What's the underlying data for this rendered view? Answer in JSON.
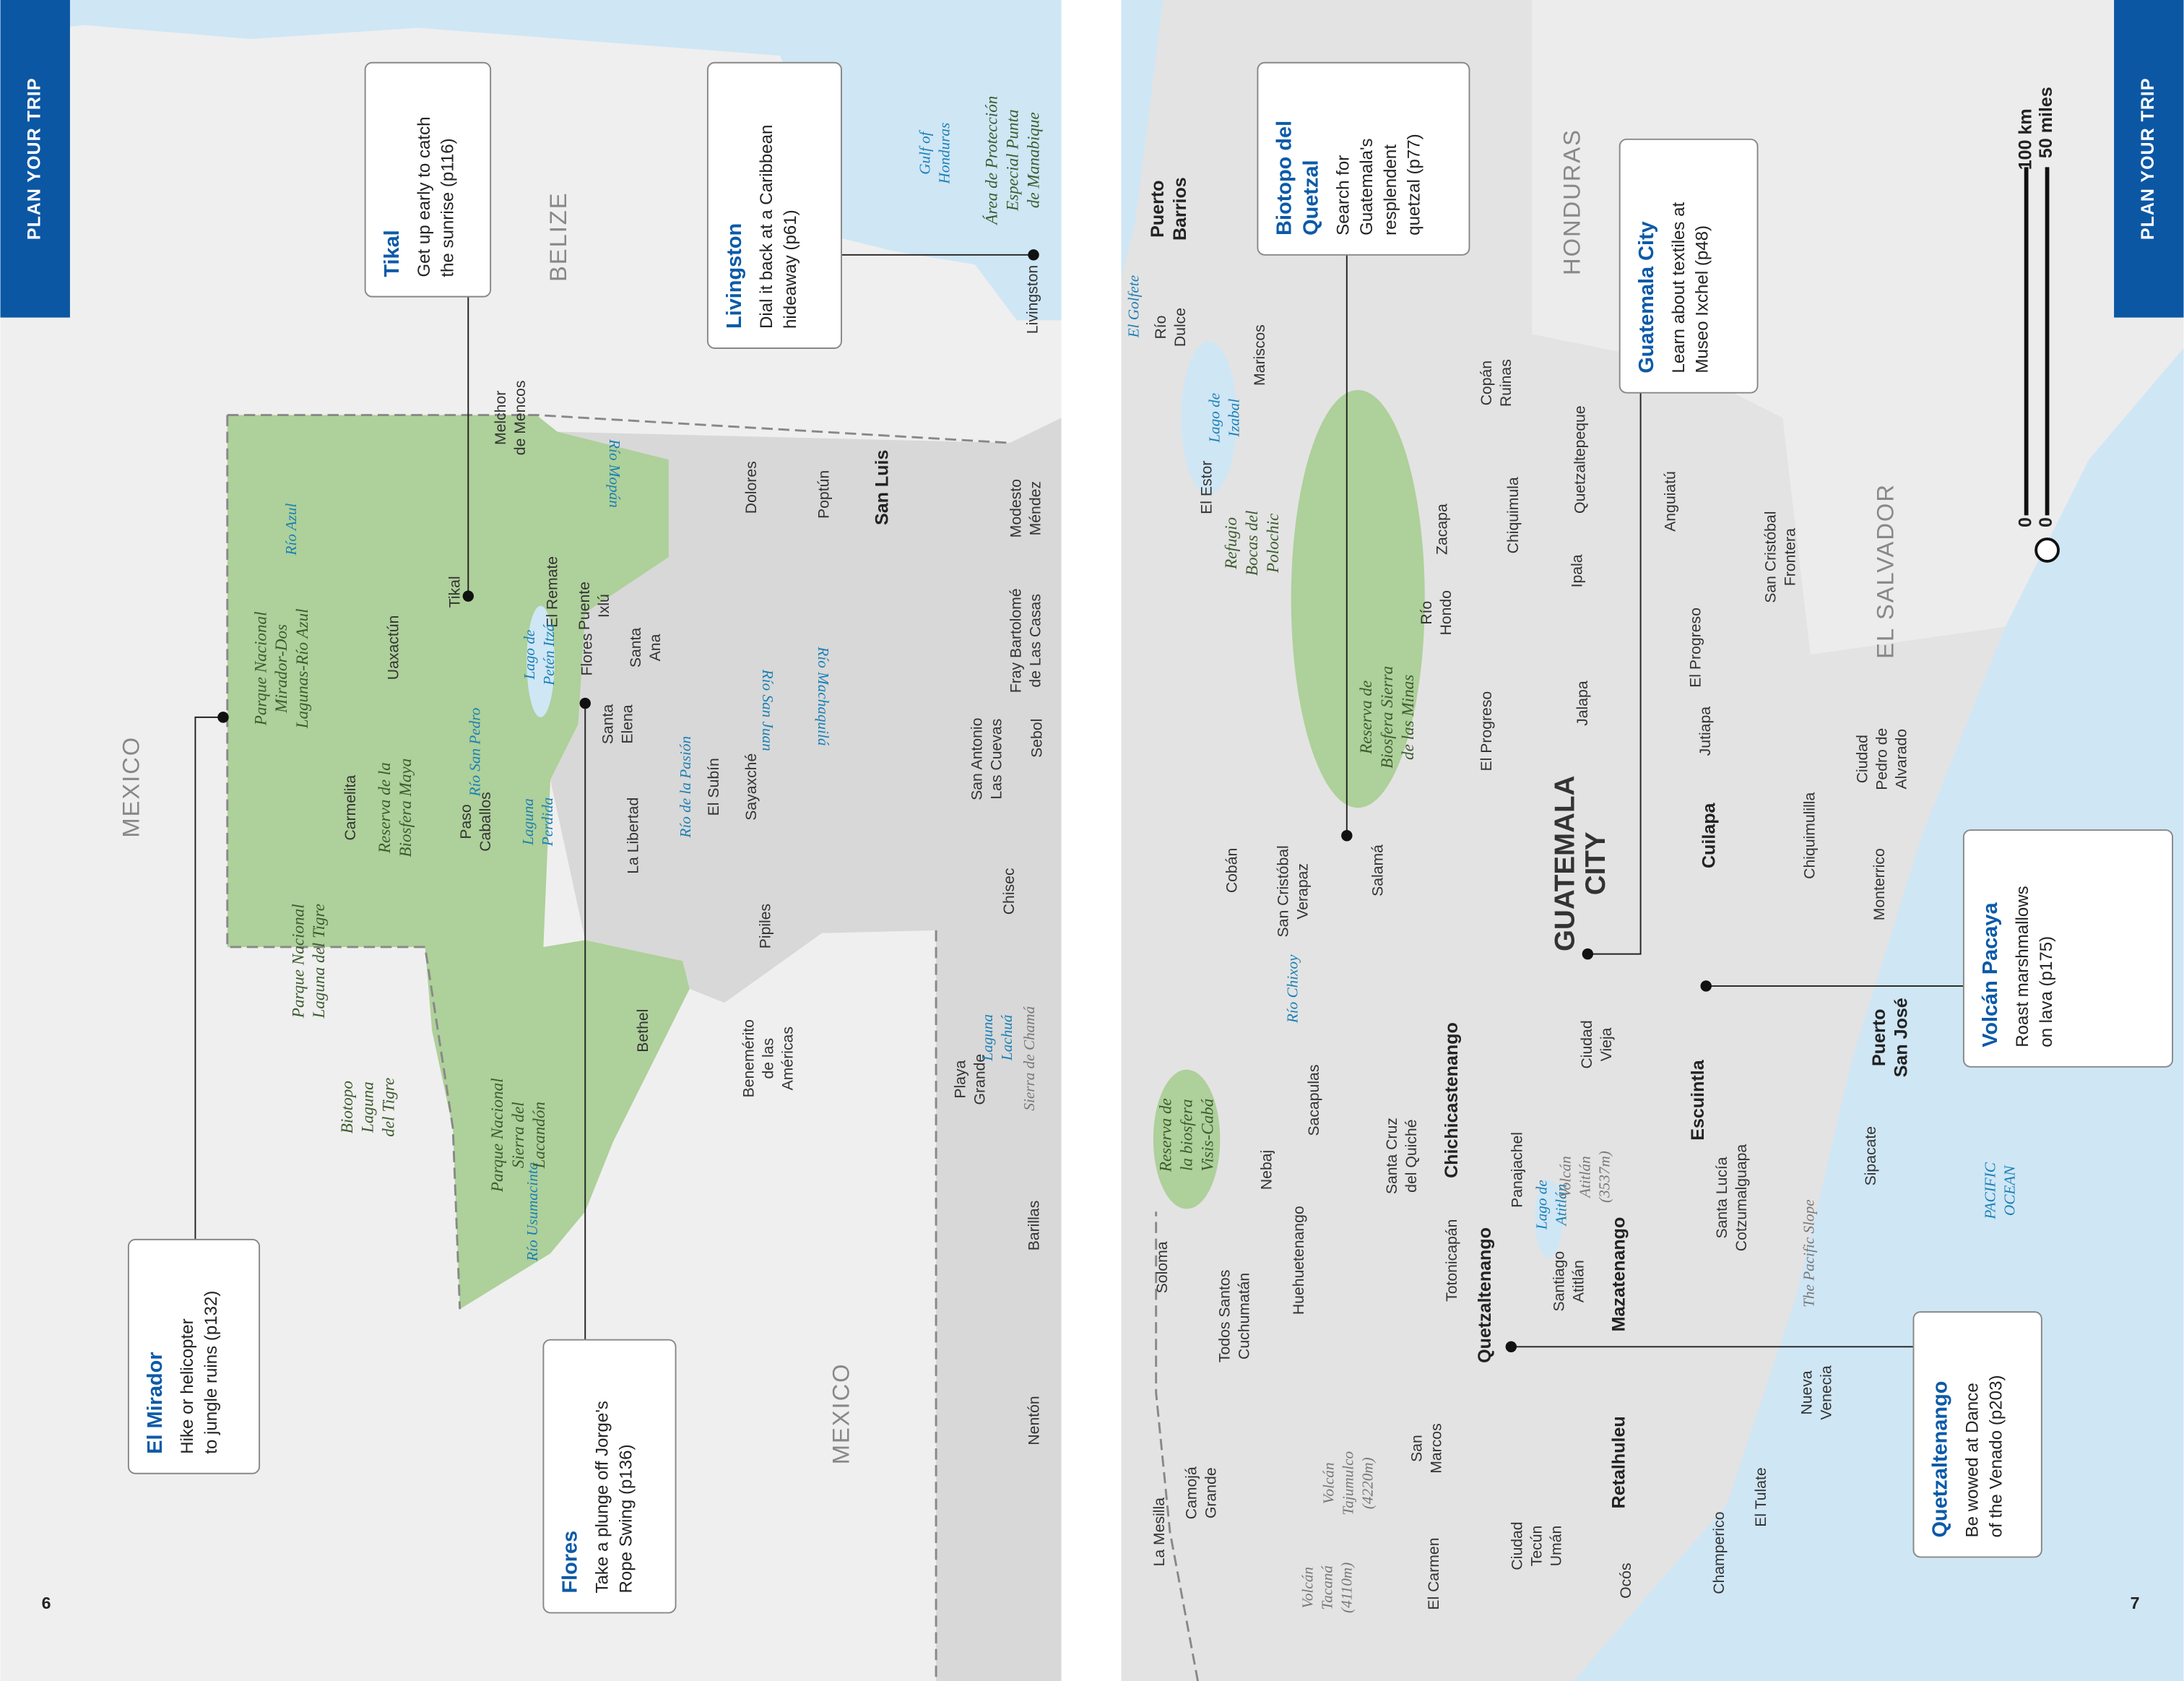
{
  "left_page": {
    "tab": "PLAN YOUR TRIP",
    "page_number": "6",
    "callouts": [
      {
        "title": [
          "Tikal"
        ],
        "text": [
          "Get up early to catch",
          "the sunrise (p116)"
        ]
      },
      {
        "title": [
          "Livingston"
        ],
        "text": [
          "Dial it back at a Caribbean",
          "hideaway (p61)"
        ]
      },
      {
        "title": [
          "El Mirador"
        ],
        "text": [
          "Hike or helicopter",
          "to jungle ruins (p132)"
        ]
      },
      {
        "title": [
          "Flores"
        ],
        "text": [
          "Take a plunge off Jorge's",
          "Rope Swing (p136)"
        ]
      }
    ],
    "countries": [
      "MEXICO",
      "BELIZE",
      "MEXICO"
    ],
    "major_towns": [
      [
        "San Luis"
      ]
    ],
    "towns": [
      [
        "Melchor",
        "de Mencos"
      ],
      [
        "Livingston"
      ],
      [
        "Dolores"
      ],
      [
        "Poptún"
      ],
      [
        "Modesto",
        "Méndez"
      ],
      [
        "Uaxactún"
      ],
      [
        "Tikal"
      ],
      [
        "El Remate"
      ],
      [
        "Puente",
        "Ixlú"
      ],
      [
        "Santa",
        "Ana"
      ],
      [
        "Santa",
        "Elena"
      ],
      [
        "Flores"
      ],
      [
        "Fray Bartolomé",
        "de Las Casas"
      ],
      [
        "Carmelita"
      ],
      [
        "Paso",
        "Caballos"
      ],
      [
        "La Libertad"
      ],
      [
        "El Subín"
      ],
      [
        "Sayaxché"
      ],
      [
        "San Antonio",
        "Las Cuevas"
      ],
      [
        "Sebol"
      ],
      [
        "Chisec"
      ],
      [
        "Pipiles"
      ],
      [
        "Bethel"
      ],
      [
        "Benemérito",
        "de las",
        "Américas"
      ],
      [
        "Playa",
        "Grande"
      ],
      [
        "Barillas"
      ],
      [
        "Nentón"
      ]
    ],
    "water": [
      [
        "Gulf of",
        "Honduras"
      ],
      [
        "Río Mopán"
      ],
      [
        "Río Azul"
      ],
      [
        "Lago de",
        "Petén Itzá"
      ],
      [
        "Río Machaquilá"
      ],
      [
        "Río San Juan"
      ],
      [
        "Río San Pedro"
      ],
      [
        "Laguna",
        "Perdida"
      ],
      [
        "Río de la Pasión"
      ],
      [
        "Laguna",
        "Lachuá"
      ],
      [
        "Río Usumacinta"
      ]
    ],
    "parks": [
      [
        "Área de Protección",
        "Especial Punta",
        "de Manabique"
      ],
      [
        "Parque Nacional",
        "Mirador-Dos",
        "Lagunas-Río Azul"
      ],
      [
        "Reserva de la",
        "Biosfera Maya"
      ],
      [
        "Parque Nacional",
        "Laguna del Tigre"
      ],
      [
        "Biotopo",
        "Laguna",
        "del Tigre"
      ],
      [
        "Parque Nacional",
        "Sierra del",
        "Lacandón"
      ]
    ],
    "relief": [
      [
        "Sierra de Chamá"
      ]
    ]
  },
  "right_page": {
    "tab": "PLAN YOUR TRIP",
    "page_number": "7",
    "callouts": [
      {
        "title": [
          "Biotopo del",
          "Quetzal"
        ],
        "text": [
          "Search for",
          "Guatemala's",
          "resplendent",
          "quetzal (p77)"
        ]
      },
      {
        "title": [
          "Guatemala City"
        ],
        "text": [
          "Learn about textiles at",
          "Museo Ixchel (p48)"
        ]
      },
      {
        "title": [
          "Volcán Pacaya"
        ],
        "text": [
          "Roast marshmallows",
          "on lava (p175)"
        ]
      },
      {
        "title": [
          "Quetzaltenango"
        ],
        "text": [
          "Be wowed at Dance",
          "of the Venado (p203)"
        ]
      }
    ],
    "countries": [
      "HONDURAS",
      "EL SALVADOR"
    ],
    "capital": [
      "GUATEMALA",
      "CITY"
    ],
    "major_towns": [
      [
        "Puerto",
        "Barrios"
      ],
      [
        "Chichicastenango"
      ],
      [
        "Quetzaltenango"
      ],
      [
        "Mazatenango"
      ],
      [
        "Retalhuleu"
      ],
      [
        "Cuilapa"
      ],
      [
        "Escuintla"
      ],
      [
        "Puerto",
        "San José"
      ]
    ],
    "towns": [
      [
        "Río",
        "Dulce"
      ],
      [
        "Mariscos"
      ],
      [
        "El Estor"
      ],
      [
        "Copán",
        "Ruinas"
      ],
      [
        "Chiquimula"
      ],
      [
        "Quetzaltepeque"
      ],
      [
        "Anguiatú"
      ],
      [
        "Río",
        "Hondo"
      ],
      [
        "Zacapa"
      ],
      [
        "Ipala"
      ],
      [
        "El Progreso"
      ],
      [
        "San Cristóbal",
        "Frontera"
      ],
      [
        "El Progreso"
      ],
      [
        "Jalapa"
      ],
      [
        "Jutiapa"
      ],
      [
        "Ciudad",
        "Pedro de",
        "Alvarado"
      ],
      [
        "Cobán"
      ],
      [
        "San Cristóbal",
        "Verapaz"
      ],
      [
        "Salamá"
      ],
      [
        "Chiquimulilla"
      ],
      [
        "Monterrico"
      ],
      [
        "Ciudad",
        "Vieja"
      ],
      [
        "Sacapulas"
      ],
      [
        "Nebaj"
      ],
      [
        "Santa Cruz",
        "del Quiché"
      ],
      [
        "Panajachel"
      ],
      [
        "Sipacate"
      ],
      [
        "Santa Lucía",
        "Cotzumalguapa"
      ],
      [
        "Huehuetenango"
      ],
      [
        "Soloma"
      ],
      [
        "Todos Santos",
        "Cuchumatán"
      ],
      [
        "Totonicapán"
      ],
      [
        "Santiago",
        "Atitlán"
      ],
      [
        "Nueva",
        "Venecia"
      ],
      [
        "San",
        "Marcos"
      ],
      [
        "El Tulate"
      ],
      [
        "La Mesilla"
      ],
      [
        "Camojá",
        "Grande"
      ],
      [
        "El Carmen"
      ],
      [
        "Ciudad",
        "Tecún",
        "Umán"
      ],
      [
        "Ocós"
      ],
      [
        "Champerico"
      ]
    ],
    "water": [
      [
        "El Golfete"
      ],
      [
        "Lago de",
        "Izabal"
      ],
      [
        "Río Chixoy"
      ],
      [
        "Lago de",
        "Atitlán"
      ],
      [
        "PACIFIC",
        "OCEAN"
      ]
    ],
    "parks": [
      [
        "Refugio",
        "Bocas del",
        "Polochic"
      ],
      [
        "Reserva de",
        "Biosfera Sierra",
        "de las Minas"
      ],
      [
        "Reserva de",
        "la biosfera",
        "Visis-Cabá"
      ]
    ],
    "relief": [
      [
        "Volcán",
        "Atitlán",
        "(3537m)"
      ],
      [
        "The Pacific Slope"
      ],
      [
        "Volcán",
        "Tajumulco",
        "(4220m)"
      ],
      [
        "Volcán",
        "Tacaná",
        "(4110m)"
      ]
    ],
    "scale": {
      "km": "100 km",
      "miles": "50 miles",
      "zero": "0"
    }
  }
}
